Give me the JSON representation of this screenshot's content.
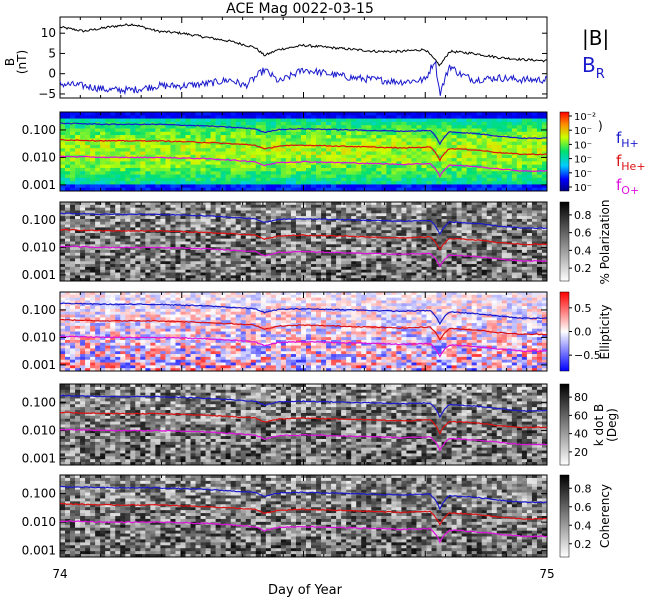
{
  "title": "ACE Mag 0022-03-15",
  "xlabel": "Day of Year",
  "x_ticks": [
    "74",
    "75"
  ],
  "chart_data": [
    {
      "id": "bfield",
      "type": "line",
      "ylabel_lines": [
        "B",
        "(nT)"
      ],
      "ylim": [
        -6,
        14
      ],
      "y_ticks": [
        {
          "value": 10,
          "label": "10"
        },
        {
          "value": 5,
          "label": "5"
        },
        {
          "value": 0,
          "label": "0"
        },
        {
          "value": -5,
          "label": "−5"
        }
      ],
      "series": [
        {
          "name": "|B|",
          "color": "#000000",
          "x": [
            74.0,
            74.05,
            74.1,
            74.13,
            74.15,
            74.2,
            74.25,
            74.3,
            74.35,
            74.4,
            74.42,
            74.45,
            74.5,
            74.55,
            74.6,
            74.65,
            74.7,
            74.75,
            74.78,
            74.8,
            74.85,
            74.9,
            74.95,
            75.0
          ],
          "y": [
            11.5,
            10.5,
            11.5,
            12.0,
            12.2,
            10.5,
            10.0,
            9.0,
            8.0,
            6.5,
            4.5,
            6.0,
            7.0,
            6.5,
            6.0,
            5.5,
            5.5,
            6.0,
            2.0,
            5.5,
            5.0,
            4.0,
            3.5,
            3.2
          ]
        },
        {
          "name": "B",
          "subscript": "R",
          "color": "#1a1acc",
          "x": [
            74.0,
            74.05,
            74.1,
            74.15,
            74.2,
            74.25,
            74.3,
            74.35,
            74.38,
            74.4,
            74.42,
            74.45,
            74.5,
            74.55,
            74.6,
            74.65,
            74.7,
            74.75,
            74.77,
            74.78,
            74.8,
            74.82,
            74.85,
            74.9,
            74.95,
            75.0
          ],
          "y": [
            -2.5,
            -3.0,
            -4.0,
            -4.0,
            -3.0,
            -3.0,
            -2.5,
            -1.5,
            -3.0,
            -1.0,
            1.0,
            -2.0,
            1.0,
            0.0,
            -1.0,
            -1.5,
            -2.0,
            -1.5,
            3.5,
            -5.0,
            2.0,
            0.0,
            -1.5,
            -1.0,
            -1.5,
            -1.5
          ]
        }
      ]
    },
    {
      "id": "psd",
      "type": "heatmap",
      "colorbar_label": "",
      "colorbar_ticks": [
        "10⁻²",
        "10⁻",
        "10⁻",
        "10⁻",
        "10⁻",
        "10⁻"
      ],
      "legend": [
        {
          "name": "f",
          "subscript": "H+",
          "color": "#1a1acc"
        },
        {
          "name": "f",
          "subscript": "He+",
          "color": "#dd1111"
        },
        {
          "name": "f",
          "subscript": "O+",
          "color": "#dd11dd"
        }
      ]
    },
    {
      "id": "polarization",
      "type": "heatmap",
      "colorbar_label": "% Polarization",
      "colorbar_ticks": [
        "0.8",
        "0.6",
        "0.4",
        "0.2"
      ]
    },
    {
      "id": "ellipticity",
      "type": "heatmap",
      "colorbar_label": "Ellipticity",
      "colorbar_ticks": [
        "0.5",
        "0.0",
        "−0.5"
      ]
    },
    {
      "id": "kdotb",
      "type": "heatmap",
      "colorbar_label_lines": [
        "k dot B",
        "(Deg)"
      ],
      "colorbar_ticks": [
        "80",
        "60",
        "40",
        "20"
      ]
    },
    {
      "id": "coherency",
      "type": "heatmap",
      "colorbar_label": "Coherency",
      "colorbar_ticks": [
        "0.8",
        "0.6",
        "0.4",
        "0.2"
      ]
    }
  ],
  "freq_axis": {
    "scale": "log",
    "ylim": [
      0.0006,
      0.45
    ],
    "ticks": [
      {
        "value": 0.1,
        "label": "0.100"
      },
      {
        "value": 0.01,
        "label": "0.010"
      },
      {
        "value": 0.001,
        "label": "0.001"
      }
    ]
  },
  "gyro_lines": {
    "x": [
      74.0,
      74.1,
      74.2,
      74.3,
      74.4,
      74.42,
      74.45,
      74.5,
      74.6,
      74.7,
      74.76,
      74.78,
      74.8,
      74.85,
      74.9,
      74.95,
      75.0
    ],
    "H+": [
      0.175,
      0.16,
      0.16,
      0.14,
      0.11,
      0.08,
      0.105,
      0.11,
      0.1,
      0.09,
      0.095,
      0.03,
      0.085,
      0.075,
      0.06,
      0.05,
      0.05
    ],
    "He+": [
      0.044,
      0.04,
      0.04,
      0.035,
      0.028,
      0.02,
      0.026,
      0.028,
      0.025,
      0.022,
      0.024,
      0.008,
      0.021,
      0.019,
      0.015,
      0.013,
      0.013
    ],
    "O+": [
      0.011,
      0.01,
      0.01,
      0.009,
      0.007,
      0.005,
      0.0066,
      0.007,
      0.0063,
      0.0056,
      0.006,
      0.002,
      0.0053,
      0.0047,
      0.0038,
      0.0032,
      0.0032
    ]
  }
}
